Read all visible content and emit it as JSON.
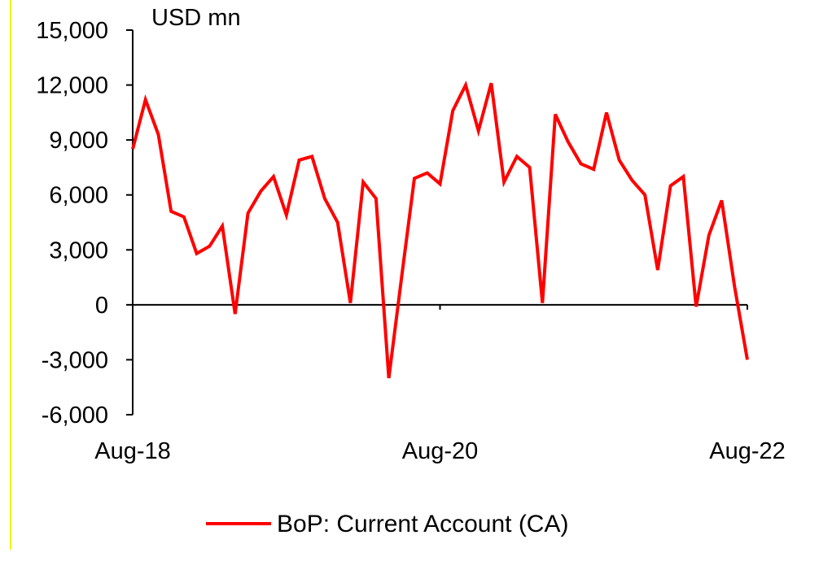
{
  "chart_data": {
    "type": "line",
    "unit_label": "USD mn",
    "ylim": [
      -6000,
      15000
    ],
    "y_ticks": [
      15000,
      12000,
      9000,
      6000,
      3000,
      0,
      -3000,
      -6000
    ],
    "y_tick_labels": [
      "15,000",
      "12,000",
      "9,000",
      "6,000",
      "3,000",
      "0",
      "-3,000",
      "-6,000"
    ],
    "x_tick_labels": [
      {
        "label": "Aug-18",
        "index": 0
      },
      {
        "label": "Aug-20",
        "index": 24
      },
      {
        "label": "Aug-22",
        "index": 48
      }
    ],
    "grid": false,
    "legend_position": "bottom",
    "series": [
      {
        "name": "BoP: Current Account (CA)",
        "color": "#ff0000",
        "values": [
          8500,
          11200,
          9300,
          5100,
          4800,
          2800,
          3200,
          4300,
          -500,
          5000,
          6200,
          7000,
          4900,
          7900,
          8100,
          5800,
          4500,
          100,
          6700,
          5800,
          -4000,
          1500,
          6900,
          7200,
          6600,
          10600,
          12000,
          9500,
          12100,
          6700,
          8100,
          7500,
          100,
          10400,
          8900,
          7700,
          7400,
          10500,
          7900,
          6800,
          6000,
          1900,
          6500,
          7000,
          -100,
          3800,
          5700,
          1000,
          -3000
        ]
      }
    ]
  }
}
